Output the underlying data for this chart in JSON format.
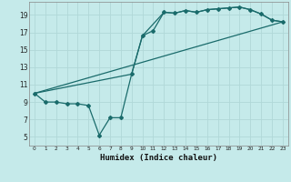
{
  "xlabel": "Humidex (Indice chaleur)",
  "bg_color": "#c5eaea",
  "grid_color": "#b0d8d8",
  "line_color": "#1a6b6b",
  "xlim": [
    -0.5,
    23.5
  ],
  "ylim": [
    4,
    20.5
  ],
  "xticks": [
    0,
    1,
    2,
    3,
    4,
    5,
    6,
    7,
    8,
    9,
    10,
    11,
    12,
    13,
    14,
    15,
    16,
    17,
    18,
    19,
    20,
    21,
    22,
    23
  ],
  "yticks": [
    5,
    7,
    9,
    11,
    13,
    15,
    17,
    19
  ],
  "series1_x": [
    0,
    1,
    2,
    3,
    4,
    5,
    6,
    7,
    8,
    9,
    10,
    11,
    12,
    13,
    14,
    15,
    16,
    17,
    18,
    19,
    20,
    21,
    22,
    23
  ],
  "series1_y": [
    10.0,
    9.0,
    9.0,
    8.8,
    8.8,
    8.6,
    5.2,
    7.2,
    7.2,
    12.2,
    16.6,
    17.2,
    19.3,
    19.2,
    19.5,
    19.3,
    19.6,
    19.7,
    19.8,
    19.9,
    19.6,
    19.1,
    18.4,
    18.2
  ],
  "series2_x": [
    0,
    23
  ],
  "series2_y": [
    10.0,
    18.2
  ],
  "series3_x": [
    0,
    9,
    10,
    12,
    13,
    14,
    15,
    16,
    17,
    18,
    19,
    20,
    21,
    22,
    23
  ],
  "series3_y": [
    10.0,
    12.2,
    16.6,
    19.3,
    19.2,
    19.5,
    19.3,
    19.6,
    19.7,
    19.8,
    19.9,
    19.6,
    19.1,
    18.4,
    18.2
  ]
}
